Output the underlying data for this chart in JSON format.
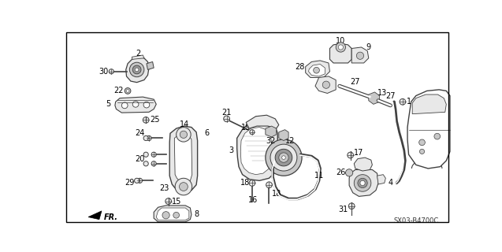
{
  "background_color": "#ffffff",
  "border_color": "#000000",
  "diagram_code": "SX03-B4700C",
  "fig_width": 6.37,
  "fig_height": 3.2,
  "dpi": 100,
  "label_fontsize": 7,
  "label_color": "#000000",
  "line_color": "#404040",
  "fill_light": "#e8e8e8",
  "fill_mid": "#c8c8c8",
  "fill_dark": "#999999"
}
